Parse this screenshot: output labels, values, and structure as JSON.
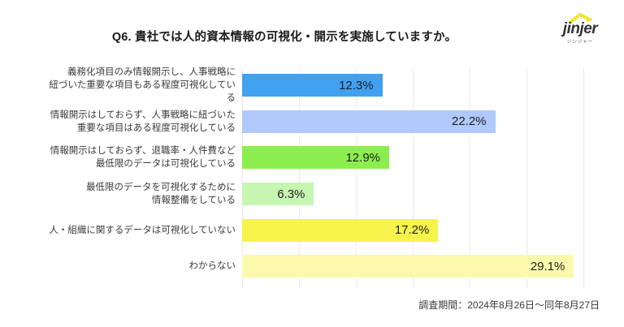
{
  "header": {
    "title": "Q6. 貴社では人的資本情報の可視化・開示を実施していますか。"
  },
  "logo": {
    "name": "jinjer",
    "subtitle": "ジンジャー",
    "roof_color": "#f2e335",
    "text_color": "#2e3338"
  },
  "footnote": "調査期間：2024年8月26日〜同年8月27日",
  "chart_data": {
    "type": "bar",
    "orientation": "horizontal",
    "title": "Q6. 貴社では人的資本情報の可視化・開示を実施していますか。",
    "categories": [
      "義務化項目のみ情報開示し、人事戦略に\n紐づいた重要な項目もある程度可視化している",
      "情報開示はしておらず、人事戦略に紐づいた\n重要な項目はある程度可視化している",
      "情報開示はしておらず、退職率・人件費など\n最低限のデータは可視化している",
      "最低限のデータを可視化するために\n情報整備をしている",
      "人・組織に関するデータは可視化していない",
      "わからない"
    ],
    "values": [
      12.3,
      22.2,
      12.9,
      6.3,
      17.2,
      29.1
    ],
    "value_labels": [
      "12.3%",
      "22.2%",
      "12.9%",
      "6.3%",
      "17.2%",
      "29.1%"
    ],
    "bar_colors": [
      "#41a0f0",
      "#b0c9fa",
      "#8cee4e",
      "#c7f6b3",
      "#f6f34b",
      "#fbf9ab"
    ],
    "xlabel": "",
    "ylabel": "",
    "xlim": [
      0,
      30
    ],
    "grid_step": 5,
    "grid": true,
    "legend": false,
    "value_label_position": "inside-right",
    "grid_color": "#ececec"
  }
}
